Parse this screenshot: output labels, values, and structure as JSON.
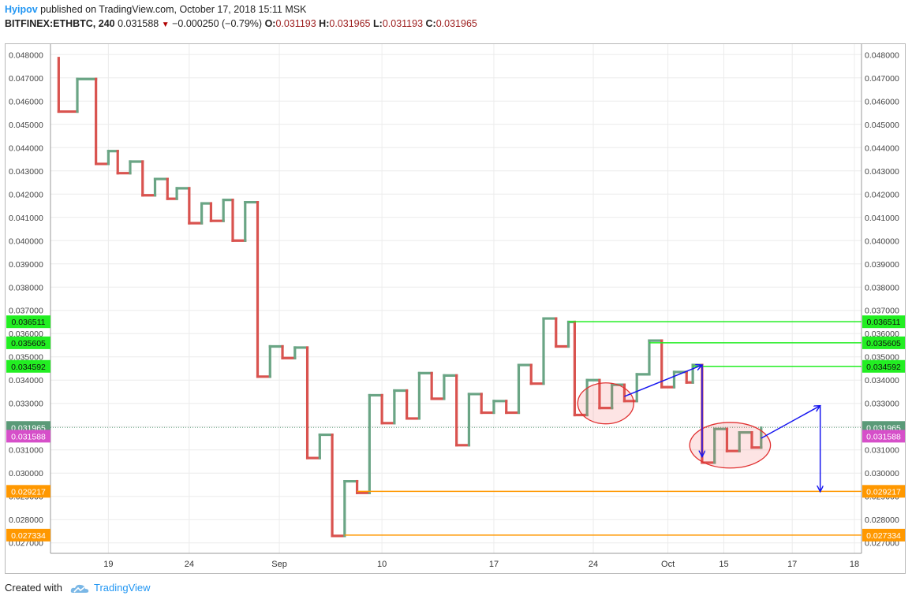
{
  "header": {
    "author": "Hyipov",
    "published_text": "published on TradingView.com, October 17, 2018 15:11 MSK",
    "symbol": "BITFINEX:ETHBTC, 240",
    "last": "0.031588",
    "change": "−0.000250 (−0.79%)",
    "o_label": "O:",
    "o_value": "0.031193",
    "h_label": "H:",
    "h_value": "0.031965",
    "l_label": "L:",
    "l_value": "0.031193",
    "c_label": "C:",
    "c_value": "0.031965"
  },
  "footer": {
    "created_with": "Created with",
    "brand": "TradingView"
  },
  "colors": {
    "up": "#6aa585",
    "down": "#d9534f",
    "grid": "#ececec",
    "green_line": "#22ee22",
    "orange_line": "#ff9800",
    "arrow": "#1515f0",
    "dotted": "#5a9a78",
    "last_price_bg": "#d64fc9"
  },
  "chart_data": {
    "type": "line",
    "style": "kagi",
    "title": "BITFINEX:ETHBTC, 240",
    "ylim": [
      0.02655,
      0.04845
    ],
    "y_ticks": [
      "0.027000",
      "0.028000",
      "0.029000",
      "0.030000",
      "0.031000",
      "0.032000",
      "0.033000",
      "0.034000",
      "0.035000",
      "0.036000",
      "0.037000",
      "0.038000",
      "0.039000",
      "0.040000",
      "0.041000",
      "0.042000",
      "0.043000",
      "0.044000",
      "0.045000",
      "0.046000",
      "0.047000",
      "0.048000"
    ],
    "x_ticks": [
      {
        "label": "19",
        "pos": 1.0
      },
      {
        "label": "24",
        "pos": 3.6
      },
      {
        "label": "Sep",
        "pos": 6.5
      },
      {
        "label": "10",
        "pos": 9.8
      },
      {
        "label": "17",
        "pos": 13.4
      },
      {
        "label": "24",
        "pos": 16.6
      },
      {
        "label": "Oct",
        "pos": 19.0
      },
      {
        "label": "15",
        "pos": 20.8
      },
      {
        "label": "17",
        "pos": 23.0
      },
      {
        "label": "18",
        "pos": 25.0
      }
    ],
    "kagi_path": [
      {
        "x": -0.6,
        "y": 0.04785
      },
      {
        "x": -0.6,
        "y": 0.04555
      },
      {
        "x": 0.0,
        "y": 0.04555
      },
      {
        "x": 0.0,
        "y": 0.04695
      },
      {
        "x": 0.6,
        "y": 0.04695
      },
      {
        "x": 0.6,
        "y": 0.0433
      },
      {
        "x": 1.0,
        "y": 0.0433
      },
      {
        "x": 1.0,
        "y": 0.04385
      },
      {
        "x": 1.3,
        "y": 0.04385
      },
      {
        "x": 1.3,
        "y": 0.0429
      },
      {
        "x": 1.7,
        "y": 0.0429
      },
      {
        "x": 1.7,
        "y": 0.0434
      },
      {
        "x": 2.1,
        "y": 0.0434
      },
      {
        "x": 2.1,
        "y": 0.04195
      },
      {
        "x": 2.5,
        "y": 0.04195
      },
      {
        "x": 2.5,
        "y": 0.04265
      },
      {
        "x": 2.9,
        "y": 0.04265
      },
      {
        "x": 2.9,
        "y": 0.0418
      },
      {
        "x": 3.2,
        "y": 0.0418
      },
      {
        "x": 3.2,
        "y": 0.04225
      },
      {
        "x": 3.6,
        "y": 0.04225
      },
      {
        "x": 3.6,
        "y": 0.04075
      },
      {
        "x": 4.0,
        "y": 0.04075
      },
      {
        "x": 4.0,
        "y": 0.0416
      },
      {
        "x": 4.3,
        "y": 0.0416
      },
      {
        "x": 4.3,
        "y": 0.04085
      },
      {
        "x": 4.7,
        "y": 0.04085
      },
      {
        "x": 4.7,
        "y": 0.04175
      },
      {
        "x": 5.0,
        "y": 0.04175
      },
      {
        "x": 5.0,
        "y": 0.04
      },
      {
        "x": 5.4,
        "y": 0.04
      },
      {
        "x": 5.4,
        "y": 0.04165
      },
      {
        "x": 5.8,
        "y": 0.04165
      },
      {
        "x": 5.8,
        "y": 0.03415
      },
      {
        "x": 6.2,
        "y": 0.03415
      },
      {
        "x": 6.2,
        "y": 0.03545
      },
      {
        "x": 6.6,
        "y": 0.03545
      },
      {
        "x": 6.6,
        "y": 0.03495
      },
      {
        "x": 7.0,
        "y": 0.03495
      },
      {
        "x": 7.0,
        "y": 0.0354
      },
      {
        "x": 7.4,
        "y": 0.0354
      },
      {
        "x": 7.4,
        "y": 0.03065
      },
      {
        "x": 7.8,
        "y": 0.03065
      },
      {
        "x": 7.8,
        "y": 0.03165
      },
      {
        "x": 8.2,
        "y": 0.03165
      },
      {
        "x": 8.2,
        "y": 0.0273
      },
      {
        "x": 8.6,
        "y": 0.0273
      },
      {
        "x": 8.6,
        "y": 0.02965
      },
      {
        "x": 9.0,
        "y": 0.02965
      },
      {
        "x": 9.0,
        "y": 0.02915
      },
      {
        "x": 9.4,
        "y": 0.02915
      },
      {
        "x": 9.4,
        "y": 0.03335
      },
      {
        "x": 9.8,
        "y": 0.03335
      },
      {
        "x": 9.8,
        "y": 0.03215
      },
      {
        "x": 10.2,
        "y": 0.03215
      },
      {
        "x": 10.2,
        "y": 0.03355
      },
      {
        "x": 10.6,
        "y": 0.03355
      },
      {
        "x": 10.6,
        "y": 0.03235
      },
      {
        "x": 11.0,
        "y": 0.03235
      },
      {
        "x": 11.0,
        "y": 0.0343
      },
      {
        "x": 11.4,
        "y": 0.0343
      },
      {
        "x": 11.4,
        "y": 0.0332
      },
      {
        "x": 11.8,
        "y": 0.0332
      },
      {
        "x": 11.8,
        "y": 0.0342
      },
      {
        "x": 12.2,
        "y": 0.0342
      },
      {
        "x": 12.2,
        "y": 0.0312
      },
      {
        "x": 12.6,
        "y": 0.0312
      },
      {
        "x": 12.6,
        "y": 0.0334
      },
      {
        "x": 13.0,
        "y": 0.0334
      },
      {
        "x": 13.0,
        "y": 0.0326
      },
      {
        "x": 13.4,
        "y": 0.0326
      },
      {
        "x": 13.4,
        "y": 0.0331
      },
      {
        "x": 13.8,
        "y": 0.0331
      },
      {
        "x": 13.8,
        "y": 0.0326
      },
      {
        "x": 14.2,
        "y": 0.0326
      },
      {
        "x": 14.2,
        "y": 0.03465
      },
      {
        "x": 14.6,
        "y": 0.03465
      },
      {
        "x": 14.6,
        "y": 0.03385
      },
      {
        "x": 15.0,
        "y": 0.03385
      },
      {
        "x": 15.0,
        "y": 0.03665
      },
      {
        "x": 15.4,
        "y": 0.03665
      },
      {
        "x": 15.4,
        "y": 0.03545
      },
      {
        "x": 15.8,
        "y": 0.03545
      },
      {
        "x": 15.8,
        "y": 0.0365
      },
      {
        "x": 16.0,
        "y": 0.0365
      },
      {
        "x": 16.0,
        "y": 0.0325
      },
      {
        "x": 16.4,
        "y": 0.0325
      },
      {
        "x": 16.4,
        "y": 0.034
      },
      {
        "x": 16.8,
        "y": 0.034
      },
      {
        "x": 16.8,
        "y": 0.0328
      },
      {
        "x": 17.2,
        "y": 0.0328
      },
      {
        "x": 17.2,
        "y": 0.0338
      },
      {
        "x": 17.6,
        "y": 0.0338
      },
      {
        "x": 17.6,
        "y": 0.0331
      },
      {
        "x": 18.0,
        "y": 0.0331
      },
      {
        "x": 18.0,
        "y": 0.03425
      },
      {
        "x": 18.4,
        "y": 0.03425
      },
      {
        "x": 18.4,
        "y": 0.0357
      },
      {
        "x": 18.8,
        "y": 0.0357
      },
      {
        "x": 18.8,
        "y": 0.0337
      },
      {
        "x": 19.2,
        "y": 0.0337
      },
      {
        "x": 19.2,
        "y": 0.03435
      },
      {
        "x": 19.6,
        "y": 0.03435
      },
      {
        "x": 19.6,
        "y": 0.0339
      },
      {
        "x": 19.8,
        "y": 0.0339
      },
      {
        "x": 19.8,
        "y": 0.03465
      },
      {
        "x": 20.1,
        "y": 0.03465
      },
      {
        "x": 20.1,
        "y": 0.03045
      },
      {
        "x": 20.5,
        "y": 0.03045
      },
      {
        "x": 20.5,
        "y": 0.0319
      },
      {
        "x": 20.9,
        "y": 0.0319
      },
      {
        "x": 20.9,
        "y": 0.03095
      },
      {
        "x": 21.3,
        "y": 0.03095
      },
      {
        "x": 21.3,
        "y": 0.03175
      },
      {
        "x": 21.7,
        "y": 0.03175
      },
      {
        "x": 21.7,
        "y": 0.0311
      },
      {
        "x": 22.0,
        "y": 0.0311
      },
      {
        "x": 22.0,
        "y": 0.03195
      }
    ],
    "levels": [
      {
        "label": "0.036511",
        "value": 0.036511,
        "color": "green",
        "x_start": 15.8
      },
      {
        "label": "0.035605",
        "value": 0.035605,
        "color": "green",
        "x_start": 18.4
      },
      {
        "label": "0.034592",
        "value": 0.034592,
        "color": "green",
        "x_start": 19.8
      },
      {
        "label": "0.029217",
        "value": 0.029217,
        "color": "orange",
        "x_start": 9.0
      },
      {
        "label": "0.027334",
        "value": 0.027334,
        "color": "orange",
        "x_start": 8.6
      }
    ],
    "current": {
      "label": "0.031965",
      "value": 0.031965
    },
    "last_price": {
      "label": "0.031588",
      "value": 0.031588
    },
    "ellipses": [
      {
        "cx": 17.0,
        "cy": 0.033,
        "rx": 0.9,
        "ry": 0.00088
      },
      {
        "cx": 21.0,
        "cy": 0.0312,
        "rx": 1.3,
        "ry": 0.00098
      }
    ],
    "arrows": [
      {
        "from": [
          17.6,
          0.0333
        ],
        "to": [
          20.1,
          0.03465
        ]
      },
      {
        "from": [
          20.1,
          0.03465
        ],
        "to": [
          20.1,
          0.0307
        ]
      },
      {
        "from": [
          22.0,
          0.0315
        ],
        "to": [
          23.9,
          0.0329
        ]
      },
      {
        "from": [
          23.9,
          0.0329
        ],
        "to": [
          23.9,
          0.0292
        ]
      }
    ]
  }
}
